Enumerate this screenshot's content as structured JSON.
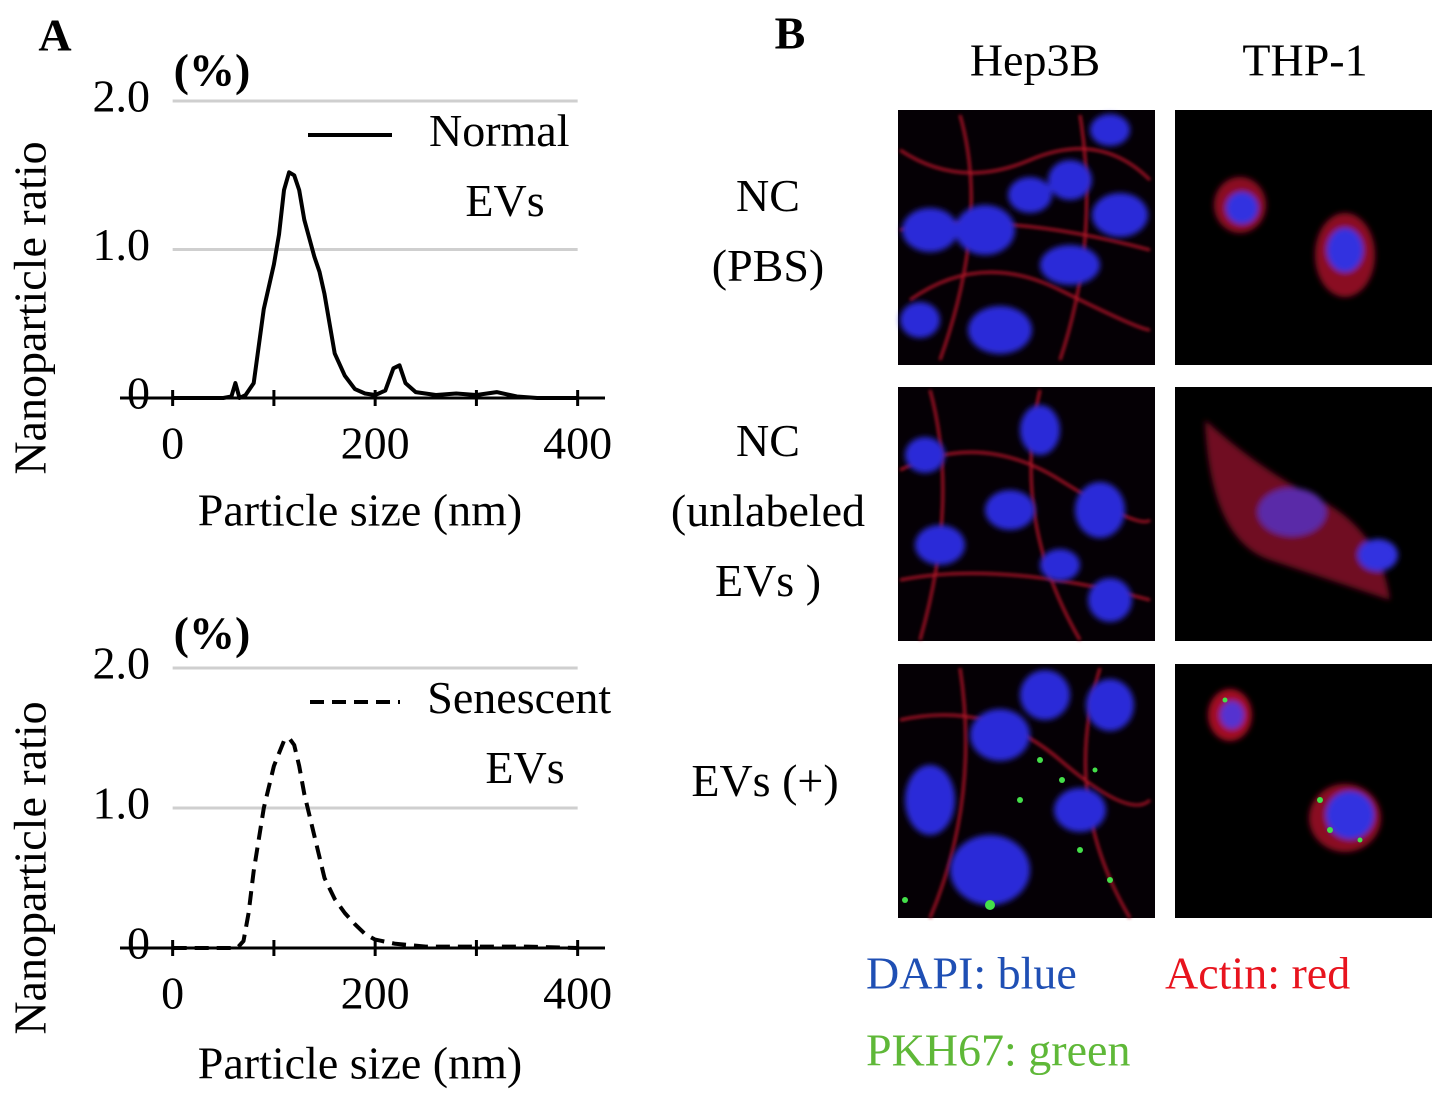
{
  "chart_data": [
    {
      "type": "line",
      "panel": "A",
      "y_unit": "(%)",
      "y_label": "Nanoparticle ratio",
      "x_label": "Particle size (nm)",
      "xlim": [
        -52,
        427
      ],
      "xticks": [
        0,
        200,
        400
      ],
      "xminor_ticks": [
        100,
        300
      ],
      "ylim": [
        0,
        2
      ],
      "yticks": [
        0,
        {
          "value": 1,
          "label": "1.0"
        },
        {
          "value": 2,
          "label": "2.0"
        }
      ],
      "grid": true,
      "legend": "upper right",
      "series": [
        {
          "name": "Normal EVs",
          "color": "#000000",
          "dash": "solid",
          "x": [
            0,
            50,
            58,
            62,
            66,
            72,
            80,
            90,
            100,
            105,
            110,
            115,
            120,
            125,
            130,
            140,
            145,
            150,
            155,
            160,
            170,
            180,
            190,
            200,
            210,
            218,
            224,
            230,
            240,
            260,
            280,
            300,
            320,
            340,
            360,
            400
          ],
          "values": [
            0,
            0,
            0.01,
            0.1,
            0,
            0.02,
            0.1,
            0.6,
            0.9,
            1.1,
            1.4,
            1.52,
            1.5,
            1.4,
            1.2,
            0.95,
            0.85,
            0.7,
            0.5,
            0.3,
            0.15,
            0.06,
            0.03,
            0.02,
            0.05,
            0.2,
            0.22,
            0.1,
            0.04,
            0.02,
            0.03,
            0.02,
            0.04,
            0.01,
            0,
            0
          ]
        }
      ]
    },
    {
      "type": "line",
      "y_unit": "(%)",
      "y_label": "Nanoparticle ratio",
      "x_label": "Particle size (nm)",
      "xlim": [
        -52,
        427
      ],
      "xticks": [
        0,
        200,
        400
      ],
      "xminor_ticks": [
        100,
        300
      ],
      "ylim": [
        0,
        2
      ],
      "yticks": [
        0,
        {
          "value": 1,
          "label": "1.0"
        },
        {
          "value": 2,
          "label": "2.0"
        }
      ],
      "grid": true,
      "legend": "upper right",
      "series": [
        {
          "name": "Senescent EVs",
          "color": "#000000",
          "dash": "dashed",
          "x": [
            0,
            60,
            65,
            70,
            75,
            80,
            90,
            100,
            110,
            115,
            120,
            125,
            130,
            140,
            150,
            160,
            170,
            180,
            190,
            200,
            220,
            250,
            300,
            350,
            400
          ],
          "values": [
            0,
            0,
            0.01,
            0.05,
            0.25,
            0.55,
            1.0,
            1.3,
            1.48,
            1.5,
            1.45,
            1.3,
            1.1,
            0.8,
            0.5,
            0.35,
            0.25,
            0.17,
            0.1,
            0.06,
            0.03,
            0.01,
            0.01,
            0.01,
            0
          ]
        }
      ]
    }
  ],
  "panel_b": {
    "label": "B",
    "columns": [
      "Hep3B",
      "THP-1"
    ],
    "rows": [
      {
        "lines": [
          "NC",
          "(PBS)"
        ]
      },
      {
        "lines": [
          "NC",
          "(unlabeled",
          "EVs )"
        ]
      },
      {
        "lines": [
          "EVs (+)"
        ]
      }
    ],
    "legend": [
      "DAPI: blue",
      "Actin: red",
      "PKH67: green"
    ]
  }
}
